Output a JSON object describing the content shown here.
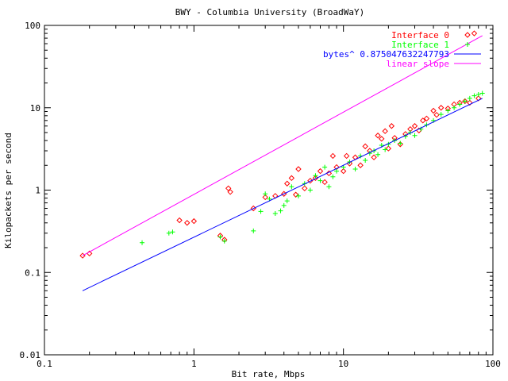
{
  "chart_data": {
    "type": "scatter",
    "title": "BWY - Columbia University (BroadWaY)",
    "xlabel": "Bit rate, Mbps",
    "ylabel": "Kilopackets per second",
    "xscale": "log",
    "yscale": "log",
    "xlim": [
      0.1,
      100
    ],
    "ylim": [
      0.01,
      100
    ],
    "xticks": [
      0.1,
      1,
      10,
      100
    ],
    "xtick_labels": [
      "0.1",
      "1",
      "10",
      "100"
    ],
    "yticks": [
      0.01,
      0.1,
      1,
      10,
      100
    ],
    "ytick_labels": [
      "0.01",
      "0.1",
      "1",
      "10",
      "100"
    ],
    "grid": false,
    "legend": "top-right",
    "series": [
      {
        "name": "Interface 0",
        "type": "scatter",
        "marker": "diamond",
        "color": "#ff0000",
        "points": [
          [
            0.18,
            0.16
          ],
          [
            0.2,
            0.17
          ],
          [
            0.8,
            0.43
          ],
          [
            0.9,
            0.4
          ],
          [
            1.0,
            0.42
          ],
          [
            1.5,
            0.28
          ],
          [
            1.6,
            0.25
          ],
          [
            1.7,
            1.05
          ],
          [
            1.75,
            0.95
          ],
          [
            2.5,
            0.6
          ],
          [
            3.0,
            0.82
          ],
          [
            3.5,
            0.85
          ],
          [
            4.0,
            0.9
          ],
          [
            4.2,
            1.2
          ],
          [
            4.5,
            1.4
          ],
          [
            4.8,
            0.88
          ],
          [
            5.0,
            1.8
          ],
          [
            5.5,
            1.05
          ],
          [
            6.0,
            1.3
          ],
          [
            6.5,
            1.4
          ],
          [
            7.0,
            1.7
          ],
          [
            7.5,
            1.25
          ],
          [
            8.0,
            1.6
          ],
          [
            8.5,
            2.6
          ],
          [
            9.0,
            1.9
          ],
          [
            10,
            1.7
          ],
          [
            10.5,
            2.6
          ],
          [
            11,
            2.1
          ],
          [
            12,
            2.5
          ],
          [
            13,
            2.0
          ],
          [
            14,
            3.4
          ],
          [
            15,
            3.0
          ],
          [
            16,
            2.5
          ],
          [
            17,
            4.6
          ],
          [
            18,
            4.2
          ],
          [
            19,
            5.2
          ],
          [
            20,
            3.2
          ],
          [
            21,
            6.0
          ],
          [
            22,
            4.3
          ],
          [
            24,
            3.6
          ],
          [
            26,
            4.8
          ],
          [
            28,
            5.5
          ],
          [
            30,
            6.0
          ],
          [
            32,
            5.3
          ],
          [
            34,
            7.0
          ],
          [
            36,
            7.4
          ],
          [
            40,
            9.2
          ],
          [
            42,
            8.2
          ],
          [
            45,
            10.0
          ],
          [
            50,
            9.8
          ],
          [
            55,
            11
          ],
          [
            60,
            11.5
          ],
          [
            65,
            12
          ],
          [
            70,
            11.5
          ],
          [
            75,
            80
          ],
          [
            80,
            13
          ]
        ]
      },
      {
        "name": "Interface 1",
        "type": "scatter",
        "marker": "plus",
        "color": "#00ff00",
        "points": [
          [
            0.45,
            0.23
          ],
          [
            0.68,
            0.3
          ],
          [
            0.72,
            0.31
          ],
          [
            1.5,
            0.27
          ],
          [
            1.6,
            0.24
          ],
          [
            2.5,
            0.32
          ],
          [
            2.8,
            0.55
          ],
          [
            3.0,
            0.9
          ],
          [
            3.2,
            0.78
          ],
          [
            3.5,
            0.52
          ],
          [
            3.8,
            0.56
          ],
          [
            4.0,
            0.65
          ],
          [
            4.2,
            0.74
          ],
          [
            4.5,
            1.1
          ],
          [
            5.0,
            0.85
          ],
          [
            5.5,
            1.2
          ],
          [
            6.0,
            1.0
          ],
          [
            6.5,
            1.5
          ],
          [
            7.0,
            1.3
          ],
          [
            7.5,
            1.9
          ],
          [
            8.0,
            1.1
          ],
          [
            8.5,
            1.45
          ],
          [
            9.0,
            1.7
          ],
          [
            10,
            1.9
          ],
          [
            11,
            2.2
          ],
          [
            12,
            1.8
          ],
          [
            13,
            2.6
          ],
          [
            14,
            2.3
          ],
          [
            15,
            2.8
          ],
          [
            16,
            3.0
          ],
          [
            17,
            2.7
          ],
          [
            18,
            3.5
          ],
          [
            19,
            3.1
          ],
          [
            20,
            3.6
          ],
          [
            22,
            4.0
          ],
          [
            24,
            3.7
          ],
          [
            26,
            4.5
          ],
          [
            28,
            5.0
          ],
          [
            30,
            4.6
          ],
          [
            33,
            5.5
          ],
          [
            36,
            6.2
          ],
          [
            40,
            7.0
          ],
          [
            45,
            8.3
          ],
          [
            50,
            9.2
          ],
          [
            55,
            10
          ],
          [
            60,
            11
          ],
          [
            65,
            12
          ],
          [
            70,
            13
          ],
          [
            75,
            14
          ],
          [
            80,
            14.5
          ],
          [
            85,
            15
          ]
        ]
      },
      {
        "name": "bytes^ 0.875047632247793",
        "type": "line",
        "color": "#0000ff",
        "points": [
          [
            0.18,
            0.06
          ],
          [
            85,
            13
          ]
        ]
      },
      {
        "name": "linear slope",
        "type": "line",
        "color": "#ff00ff",
        "points": [
          [
            0.18,
            0.16
          ],
          [
            85,
            75
          ]
        ]
      }
    ]
  }
}
